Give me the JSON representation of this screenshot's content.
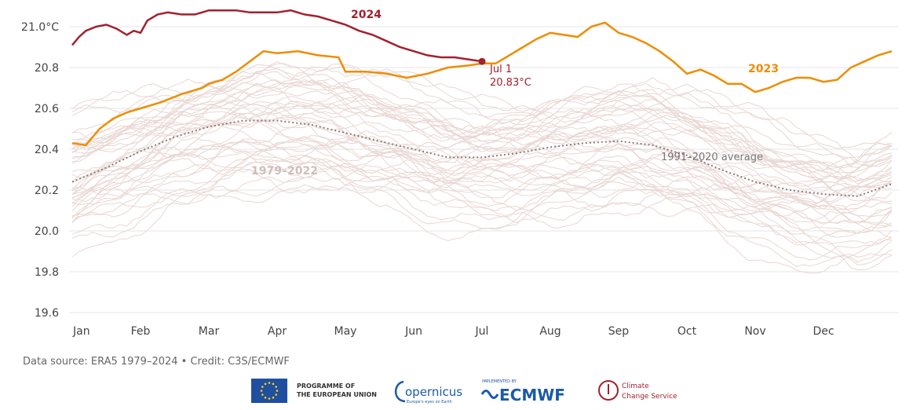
{
  "chart_data": {
    "type": "line",
    "title": "",
    "xlabel": "",
    "ylabel": "",
    "x_ticks": [
      "Jan",
      "Feb",
      "Mar",
      "Apr",
      "May",
      "Jun",
      "Jul",
      "Aug",
      "Sep",
      "Oct",
      "Nov",
      "Dec"
    ],
    "y_ticks": [
      "21.0°C",
      "20.8",
      "20.6",
      "20.4",
      "20.2",
      "20.0",
      "19.8",
      "19.6"
    ],
    "y_tick_values": [
      21.0,
      20.8,
      20.6,
      20.4,
      20.2,
      20.0,
      19.8,
      19.6
    ],
    "ylim": [
      19.6,
      21.05
    ],
    "xlim": [
      0,
      12
    ],
    "grid": "horizontal",
    "series": [
      {
        "name": "2024",
        "color": "#a3202e",
        "x": [
          0,
          0.1,
          0.2,
          0.35,
          0.5,
          0.65,
          0.8,
          0.9,
          1.0,
          1.1,
          1.25,
          1.4,
          1.6,
          1.8,
          2.0,
          2.2,
          2.4,
          2.6,
          2.8,
          3.0,
          3.2,
          3.4,
          3.6,
          3.8,
          4.0,
          4.2,
          4.4,
          4.6,
          4.8,
          5.0,
          5.2,
          5.4,
          5.6,
          5.8,
          6.0
        ],
        "values": [
          20.91,
          20.95,
          20.98,
          21.0,
          21.01,
          20.99,
          20.96,
          20.98,
          20.97,
          21.03,
          21.06,
          21.07,
          21.06,
          21.06,
          21.08,
          21.08,
          21.08,
          21.07,
          21.07,
          21.07,
          21.08,
          21.06,
          21.05,
          21.03,
          21.01,
          20.98,
          20.96,
          20.93,
          20.9,
          20.88,
          20.86,
          20.85,
          20.85,
          20.84,
          20.83
        ]
      },
      {
        "name": "2023",
        "color": "#f08c00",
        "x": [
          0,
          0.2,
          0.4,
          0.6,
          0.8,
          1.0,
          1.3,
          1.6,
          1.9,
          2.0,
          2.2,
          2.4,
          2.6,
          2.8,
          3.0,
          3.3,
          3.6,
          3.9,
          4.0,
          4.3,
          4.6,
          4.9,
          5.2,
          5.5,
          5.8,
          6.0,
          6.2,
          6.4,
          6.6,
          6.8,
          7.0,
          7.2,
          7.4,
          7.6,
          7.8,
          8.0,
          8.2,
          8.4,
          8.6,
          8.8,
          9.0,
          9.2,
          9.4,
          9.6,
          9.8,
          10.0,
          10.2,
          10.4,
          10.6,
          10.8,
          11.0,
          11.2,
          11.4,
          11.6,
          11.8,
          12.0
        ],
        "values": [
          20.43,
          20.42,
          20.5,
          20.55,
          20.58,
          20.6,
          20.63,
          20.67,
          20.7,
          20.72,
          20.74,
          20.78,
          20.83,
          20.88,
          20.87,
          20.88,
          20.86,
          20.85,
          20.78,
          20.78,
          20.77,
          20.75,
          20.77,
          20.8,
          20.81,
          20.82,
          20.82,
          20.86,
          20.9,
          20.94,
          20.97,
          20.96,
          20.95,
          21.0,
          21.02,
          20.97,
          20.95,
          20.92,
          20.88,
          20.83,
          20.77,
          20.79,
          20.76,
          20.72,
          20.72,
          20.68,
          20.7,
          20.73,
          20.75,
          20.75,
          20.73,
          20.74,
          20.8,
          20.83,
          20.86,
          20.88
        ]
      },
      {
        "name": "1991–2020 average",
        "color": "#8a7a78",
        "x": [
          0,
          0.5,
          1.0,
          1.5,
          2.0,
          2.5,
          3.0,
          3.5,
          4.0,
          4.5,
          5.0,
          5.5,
          6.0,
          6.5,
          7.0,
          7.5,
          8.0,
          8.5,
          9.0,
          9.5,
          10.0,
          10.5,
          11.0,
          11.5,
          12.0
        ],
        "values": [
          20.24,
          20.31,
          20.39,
          20.46,
          20.51,
          20.54,
          20.54,
          20.52,
          20.48,
          20.44,
          20.4,
          20.36,
          20.36,
          20.38,
          20.41,
          20.43,
          20.44,
          20.42,
          20.37,
          20.3,
          20.24,
          20.2,
          20.18,
          20.17,
          20.23
        ]
      }
    ],
    "background_series_label": "1979–2022",
    "background_series_color": "#e9d7d3",
    "annotations": [
      {
        "text_line1": "Jul 1",
        "text_line2": "20.83°C",
        "x": 6.0,
        "y": 20.83,
        "color": "#a3202e"
      }
    ],
    "series_labels": {
      "s2024": "2024",
      "s2023": "2023",
      "avg": "1991–2020 average",
      "bg": "1979–2022"
    }
  },
  "footer": {
    "source": "Data source: ERA5 1979–2024 • Credit: C3S/ECMWF",
    "logos": {
      "eu_line1": "PROGRAMME OF",
      "eu_line2": "THE EUROPEAN UNION",
      "copernicus": "opernicus",
      "copernicus_tag": "Europe's eyes on Earth",
      "ecmwf_small": "IMPLEMENTED BY",
      "ecmwf": "ECMWF",
      "c3s_line1": "Climate",
      "c3s_line2": "Change Service"
    },
    "colors": {
      "eu_blue": "#1f4fa0",
      "eu_star": "#ffd200",
      "ecmwf_blue": "#1c5aa6",
      "c3s_red": "#a3202e"
    }
  }
}
